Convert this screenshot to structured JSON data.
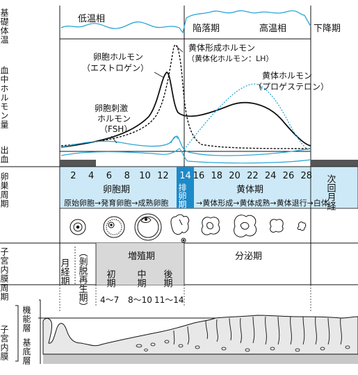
{
  "colors": {
    "accent_blue": "#1d8ac9",
    "light_blue": "#cde9f7",
    "cyan_line": "#2aa6d6",
    "gray_band": "#d8d8d8",
    "dark_band": "#555555",
    "ink": "#111111"
  },
  "rows": {
    "bbt": "基礎体温",
    "hormone": "血中ホルモン量",
    "bleed": "出血",
    "ovarian": "卵巣周期",
    "uterine": "子宮内膜周期",
    "endometrium": "子宮内膜",
    "functional": "機能層",
    "basal": "基底層"
  },
  "bbt_labels": {
    "low": "低温相",
    "fall": "陥落期",
    "high": "高温相",
    "decline": "下降期"
  },
  "hormones": {
    "estrogen_1": "卵胞ホルモン",
    "estrogen_2": "（エストロゲン）",
    "lh_1": "黄体形成ホルモン",
    "lh_2": "（黄体化ホルモン：LH）",
    "progesterone_1": "黄体ホルモン",
    "progesterone_2": "（プロゲステロン）",
    "fsh_1": "卵胞刺激",
    "fsh_2": "ホルモン",
    "fsh_3": "（FSH）"
  },
  "day_ticks": [
    "2",
    "4",
    "6",
    "8",
    "10",
    "12",
    "16",
    "18",
    "20",
    "22",
    "24",
    "26",
    "28"
  ],
  "ovarian_cycle": {
    "ovulation_day": "14",
    "ovulation_label": "排卵期",
    "follicular": "卵胞期",
    "luteal": "黄体期",
    "next_period": "次回月経",
    "follicular_stages": "原始卵胞→発育卵胞→成熟卵胞",
    "luteal_stages": "→黄体形成→黄体成熟→黄体退行→白体"
  },
  "uterine_cycle": {
    "menstrual": "月経期",
    "shedding": "（剝脱再生期）",
    "proliferative": "増殖期",
    "early": "初期",
    "mid": "中期",
    "late": "後期",
    "secretory": "分泌期",
    "range_early": "4〜7",
    "range_mid": "8〜10",
    "range_late": "11〜14"
  }
}
